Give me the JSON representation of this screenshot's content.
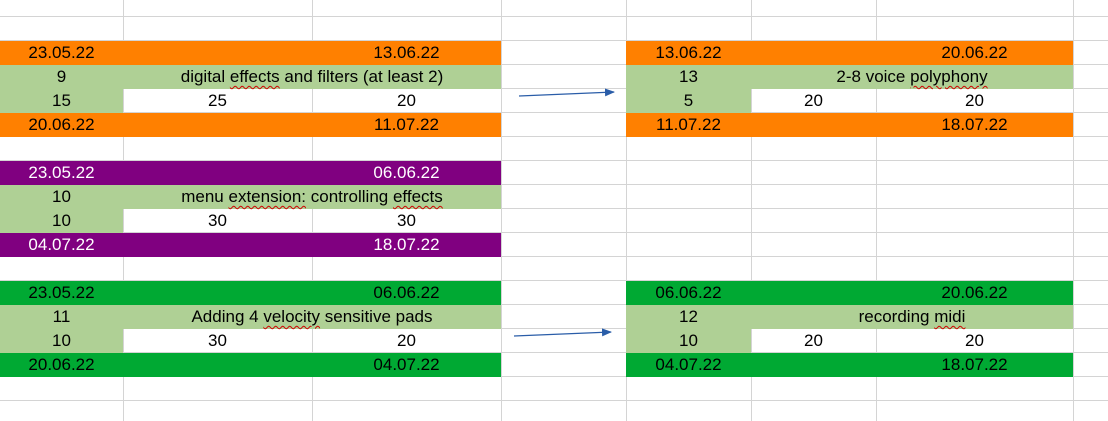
{
  "colors": {
    "orange": "#ff8000",
    "purple": "#800080",
    "green": "#00a933",
    "light_green": "#afd095",
    "gridline": "#d4d4d4",
    "arrow": "#2a5da8"
  },
  "block_orange_left": {
    "start_date": "23.05.22",
    "end_date": "13.06.22",
    "id": "9",
    "title": "digital effects and filters (at least 2)",
    "v1": "15",
    "v2": "25",
    "v3": "20",
    "actual_start": "20.06.22",
    "actual_end": "11.07.22"
  },
  "block_orange_right": {
    "start_date": "13.06.22",
    "end_date": "20.06.22",
    "id": "13",
    "title": "2-8 voice polyphony",
    "v1": "5",
    "v2": "20",
    "v3": "20",
    "actual_start": "11.07.22",
    "actual_end": "18.07.22"
  },
  "block_purple": {
    "start_date": "23.05.22",
    "end_date": "06.06.22",
    "id": "10",
    "title": "menu extension: controlling effects",
    "v1": "10",
    "v2": "30",
    "v3": "30",
    "actual_start": "04.07.22",
    "actual_end": "18.07.22"
  },
  "block_green_left": {
    "start_date": "23.05.22",
    "end_date": "06.06.22",
    "id": "11",
    "title": "Adding 4 velocity sensitive pads",
    "v1": "10",
    "v2": "30",
    "v3": "20",
    "actual_start": "20.06.22",
    "actual_end": "04.07.22"
  },
  "block_green_right": {
    "start_date": "06.06.22",
    "end_date": "20.06.22",
    "id": "12",
    "title": "recording midi",
    "v1": "10",
    "v2": "20",
    "v3": "20",
    "actual_start": "04.07.22",
    "actual_end": "18.07.22"
  }
}
